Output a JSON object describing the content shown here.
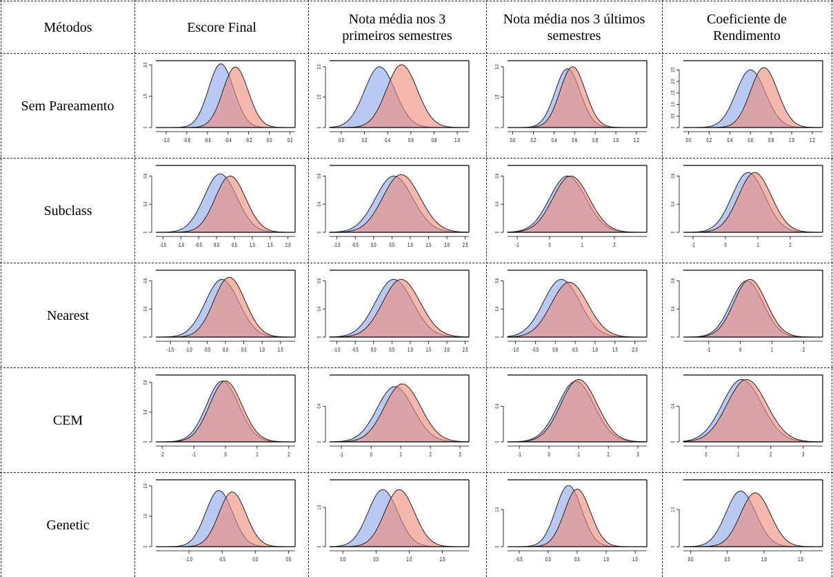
{
  "table": {
    "headers": [
      "Métodos",
      "Escore Final",
      "Nota média nos 3 primeiros semestres",
      "Nota média nos 3 últimos semestres",
      "Coeficiente de Rendimento"
    ],
    "rows": [
      "Sem Pareamento",
      "Subclass",
      "Nearest",
      "CEM",
      "Genetic"
    ]
  },
  "colors": {
    "blue_fill": "#8da8ee",
    "red_fill": "#ee8c7c",
    "overlap": "#a393b9",
    "line": "#222222"
  },
  "chart_data": [
    {
      "type": "area",
      "panel": "Sem Pareamento / Escore Final",
      "xticks": [
        "-1.0",
        "-0.8",
        "-0.6",
        "-0.4",
        "-0.2",
        "0.0",
        "0.2"
      ],
      "xlim": [
        -1.1,
        0.25
      ],
      "yticks": [
        "0",
        "1.5",
        "3.0"
      ],
      "ylim": [
        0,
        3.2
      ],
      "series": [
        {
          "color": "blue",
          "mean": -0.47,
          "sd": 0.12,
          "peak": 3.05
        },
        {
          "color": "red",
          "mean": -0.33,
          "sd": 0.12,
          "peak": 2.9
        }
      ]
    },
    {
      "type": "area",
      "panel": "Sem Pareamento / Nota média nos 3 primeiros semestres",
      "xticks": [
        "0.0",
        "0.2",
        "0.4",
        "0.6",
        "0.8",
        "1.0"
      ],
      "xlim": [
        -0.1,
        1.1
      ],
      "yticks": [
        "0",
        "1.5",
        "3.0"
      ],
      "ylim": [
        0,
        3.3
      ],
      "series": [
        {
          "color": "blue",
          "mean": 0.33,
          "sd": 0.13,
          "peak": 3.0
        },
        {
          "color": "red",
          "mean": 0.52,
          "sd": 0.13,
          "peak": 3.1
        }
      ]
    },
    {
      "type": "area",
      "panel": "Sem Pareamento / Nota média nos 3 últimos semestres",
      "xticks": [
        "0.0",
        "0.2",
        "0.4",
        "0.6",
        "0.8",
        "1.0",
        "1.2"
      ],
      "xlim": [
        -0.05,
        1.3
      ],
      "yticks": [
        "0",
        "1.5",
        "3.0"
      ],
      "ylim": [
        0,
        3.3
      ],
      "series": [
        {
          "color": "blue",
          "mean": 0.53,
          "sd": 0.12,
          "peak": 2.9
        },
        {
          "color": "red",
          "mean": 0.58,
          "sd": 0.12,
          "peak": 3.0
        }
      ]
    },
    {
      "type": "area",
      "panel": "Sem Pareamento / Coeficiente de Rendimento",
      "xticks": [
        "0.0",
        "0.2",
        "0.4",
        "0.6",
        "0.8",
        "1.0",
        "1.2"
      ],
      "xlim": [
        -0.05,
        1.3
      ],
      "yticks": [
        "0",
        "0.5",
        "1.0",
        "1.5",
        "2.0",
        "2.5"
      ],
      "ylim": [
        0,
        2.9
      ],
      "series": [
        {
          "color": "blue",
          "mean": 0.6,
          "sd": 0.14,
          "peak": 2.5
        },
        {
          "color": "red",
          "mean": 0.73,
          "sd": 0.13,
          "peak": 2.6
        }
      ]
    },
    {
      "type": "area",
      "panel": "Subclass / Escore Final",
      "xticks": [
        "-1.5",
        "-1.0",
        "-0.5",
        "0.0",
        "0.5",
        "1.0",
        "1.5",
        "2.0"
      ],
      "xlim": [
        -1.7,
        2.2
      ],
      "yticks": [
        "0",
        "0.4",
        "0.8"
      ],
      "ylim": [
        0,
        0.95
      ],
      "series": [
        {
          "color": "blue",
          "mean": 0.1,
          "sd": 0.45,
          "peak": 0.83
        },
        {
          "color": "red",
          "mean": 0.38,
          "sd": 0.42,
          "peak": 0.8
        }
      ]
    },
    {
      "type": "area",
      "panel": "Subclass / Nota média nos 3 primeiros semestres",
      "xticks": [
        "-1.0",
        "-0.5",
        "0.0",
        "0.5",
        "1.0",
        "1.5",
        "2.0",
        "2.5"
      ],
      "xlim": [
        -1.2,
        2.6
      ],
      "yticks": [
        "0",
        "0.4",
        "0.8"
      ],
      "ylim": [
        0,
        0.95
      ],
      "series": [
        {
          "color": "blue",
          "mean": 0.55,
          "sd": 0.5,
          "peak": 0.8
        },
        {
          "color": "red",
          "mean": 0.75,
          "sd": 0.5,
          "peak": 0.82
        }
      ]
    },
    {
      "type": "area",
      "panel": "Subclass / Nota média nos 3 últimos semestres",
      "xticks": [
        "-1",
        "0",
        "1",
        "2"
      ],
      "xlim": [
        -1.3,
        3.0
      ],
      "yticks": [
        "0",
        "0.4",
        "0.8"
      ],
      "ylim": [
        0,
        0.95
      ],
      "series": [
        {
          "color": "blue",
          "mean": 0.55,
          "sd": 0.55,
          "peak": 0.8
        },
        {
          "color": "red",
          "mean": 0.65,
          "sd": 0.55,
          "peak": 0.8
        }
      ]
    },
    {
      "type": "area",
      "panel": "Subclass / Coeficiente de Rendimento",
      "xticks": [
        "-1",
        "0",
        "1",
        "2"
      ],
      "xlim": [
        -1.3,
        3.0
      ],
      "yticks": [
        "0",
        "0.4",
        "0.8"
      ],
      "ylim": [
        0,
        0.95
      ],
      "series": [
        {
          "color": "blue",
          "mean": 0.7,
          "sd": 0.5,
          "peak": 0.85
        },
        {
          "color": "red",
          "mean": 0.9,
          "sd": 0.5,
          "peak": 0.85
        }
      ]
    },
    {
      "type": "area",
      "panel": "Nearest / Escore Final",
      "xticks": [
        "-1.5",
        "-1.0",
        "-0.5",
        "0.0",
        "0.5",
        "1.0",
        "1.5"
      ],
      "xlim": [
        -1.9,
        1.9
      ],
      "yticks": [
        "0",
        "0.4",
        "0.8"
      ],
      "ylim": [
        0,
        0.95
      ],
      "series": [
        {
          "color": "blue",
          "mean": -0.1,
          "sd": 0.45,
          "peak": 0.82
        },
        {
          "color": "red",
          "mean": 0.1,
          "sd": 0.42,
          "peak": 0.85
        }
      ]
    },
    {
      "type": "area",
      "panel": "Nearest / Nota média nos 3 primeiros semestres",
      "xticks": [
        "-1.0",
        "-0.5",
        "0.0",
        "0.5",
        "1.0",
        "1.5",
        "2.0",
        "2.5"
      ],
      "xlim": [
        -1.2,
        2.6
      ],
      "yticks": [
        "0",
        "0.4",
        "0.8"
      ],
      "ylim": [
        0,
        0.95
      ],
      "series": [
        {
          "color": "blue",
          "mean": 0.55,
          "sd": 0.5,
          "peak": 0.82
        },
        {
          "color": "red",
          "mean": 0.75,
          "sd": 0.5,
          "peak": 0.82
        }
      ]
    },
    {
      "type": "area",
      "panel": "Nearest / Nota média nos 3 últimos semestres",
      "xticks": [
        "-1.0",
        "-0.5",
        "0.0",
        "0.5",
        "1.0",
        "1.5",
        "2.0"
      ],
      "xlim": [
        -1.2,
        2.3
      ],
      "yticks": [
        "0",
        "0.4",
        "0.8"
      ],
      "ylim": [
        0,
        0.95
      ],
      "series": [
        {
          "color": "blue",
          "mean": 0.15,
          "sd": 0.45,
          "peak": 0.82
        },
        {
          "color": "red",
          "mean": 0.35,
          "sd": 0.45,
          "peak": 0.78
        }
      ]
    },
    {
      "type": "area",
      "panel": "Nearest / Coeficiente de Rendimento",
      "xticks": [
        "-1",
        "0",
        "1",
        "2"
      ],
      "xlim": [
        -1.8,
        2.6
      ],
      "yticks": [
        "0",
        "0.4",
        "0.8"
      ],
      "ylim": [
        0,
        0.95
      ],
      "series": [
        {
          "color": "blue",
          "mean": 0.2,
          "sd": 0.5,
          "peak": 0.8
        },
        {
          "color": "red",
          "mean": 0.3,
          "sd": 0.5,
          "peak": 0.82
        }
      ]
    },
    {
      "type": "area",
      "panel": "CEM / Escore Final",
      "xticks": [
        "-2",
        "-1",
        "0",
        "1",
        "2"
      ],
      "xlim": [
        -2.2,
        2.2
      ],
      "yticks": [
        "0",
        "0.4",
        "0.8"
      ],
      "ylim": [
        0,
        0.9
      ],
      "series": [
        {
          "color": "blue",
          "mean": -0.1,
          "sd": 0.5,
          "peak": 0.82
        },
        {
          "color": "red",
          "mean": 0.0,
          "sd": 0.5,
          "peak": 0.82
        }
      ]
    },
    {
      "type": "area",
      "panel": "CEM / Nota média nos 3 primeiros semestres",
      "xticks": [
        "-1",
        "0",
        "1",
        "2",
        "3"
      ],
      "xlim": [
        -1.4,
        3.3
      ],
      "yticks": [
        "0",
        "0.4"
      ],
      "ylim": [
        0,
        0.75
      ],
      "series": [
        {
          "color": "blue",
          "mean": 0.8,
          "sd": 0.6,
          "peak": 0.62
        },
        {
          "color": "red",
          "mean": 1.05,
          "sd": 0.6,
          "peak": 0.65
        }
      ]
    },
    {
      "type": "area",
      "panel": "CEM / Nota média nos 3 últimos semestres",
      "xticks": [
        "-1",
        "0",
        "1",
        "2",
        "3"
      ],
      "xlim": [
        -1.4,
        3.3
      ],
      "yticks": [
        "0",
        "0.4"
      ],
      "ylim": [
        0,
        0.75
      ],
      "series": [
        {
          "color": "blue",
          "mean": 0.9,
          "sd": 0.6,
          "peak": 0.68
        },
        {
          "color": "red",
          "mean": 1.0,
          "sd": 0.6,
          "peak": 0.7
        }
      ]
    },
    {
      "type": "area",
      "panel": "CEM / Coeficiente de Rendimento",
      "xticks": [
        "0",
        "1",
        "2",
        "3"
      ],
      "xlim": [
        -0.7,
        3.6
      ],
      "yticks": [
        "0",
        "0.4"
      ],
      "ylim": [
        0,
        0.75
      ],
      "series": [
        {
          "color": "blue",
          "mean": 1.1,
          "sd": 0.6,
          "peak": 0.7
        },
        {
          "color": "red",
          "mean": 1.25,
          "sd": 0.6,
          "peak": 0.7
        }
      ]
    },
    {
      "type": "area",
      "panel": "Genetic / Escore Final",
      "xticks": [
        "-1.0",
        "-0.5",
        "0.0",
        "0.5"
      ],
      "xlim": [
        -1.5,
        0.6
      ],
      "yticks": [
        "0",
        "1.0",
        "2.0"
      ],
      "ylim": [
        0,
        2.2
      ],
      "series": [
        {
          "color": "blue",
          "mean": -0.55,
          "sd": 0.2,
          "peak": 1.85
        },
        {
          "color": "red",
          "mean": -0.35,
          "sd": 0.2,
          "peak": 1.8
        }
      ]
    },
    {
      "type": "area",
      "panel": "Genetic / Nota média nos 3 primeiros semestres",
      "xticks": [
        "0.0",
        "0.5",
        "1.0",
        "1.5"
      ],
      "xlim": [
        -0.2,
        1.9
      ],
      "yticks": [
        "0",
        "1.0"
      ],
      "ylim": [
        0,
        1.7
      ],
      "series": [
        {
          "color": "blue",
          "mean": 0.6,
          "sd": 0.22,
          "peak": 1.45
        },
        {
          "color": "red",
          "mean": 0.85,
          "sd": 0.22,
          "peak": 1.45
        }
      ]
    },
    {
      "type": "area",
      "panel": "Genetic / Nota média nos 3 últimos semestres",
      "xticks": [
        "-0.5",
        "0.0",
        "0.5",
        "1.0",
        "1.5"
      ],
      "xlim": [
        -0.7,
        1.7
      ],
      "yticks": [
        "0",
        "1.0"
      ],
      "ylim": [
        0,
        1.8
      ],
      "series": [
        {
          "color": "blue",
          "mean": 0.35,
          "sd": 0.22,
          "peak": 1.65
        },
        {
          "color": "red",
          "mean": 0.5,
          "sd": 0.22,
          "peak": 1.55
        }
      ]
    },
    {
      "type": "area",
      "panel": "Genetic / Coeficiente de Rendimento",
      "xticks": [
        "0.0",
        "0.5",
        "1.0",
        "1.5"
      ],
      "xlim": [
        -0.1,
        1.8
      ],
      "yticks": [
        "0",
        "1.0"
      ],
      "ylim": [
        0,
        1.8
      ],
      "series": [
        {
          "color": "blue",
          "mean": 0.68,
          "sd": 0.2,
          "peak": 1.5
        },
        {
          "color": "red",
          "mean": 0.88,
          "sd": 0.2,
          "peak": 1.45
        }
      ]
    }
  ]
}
